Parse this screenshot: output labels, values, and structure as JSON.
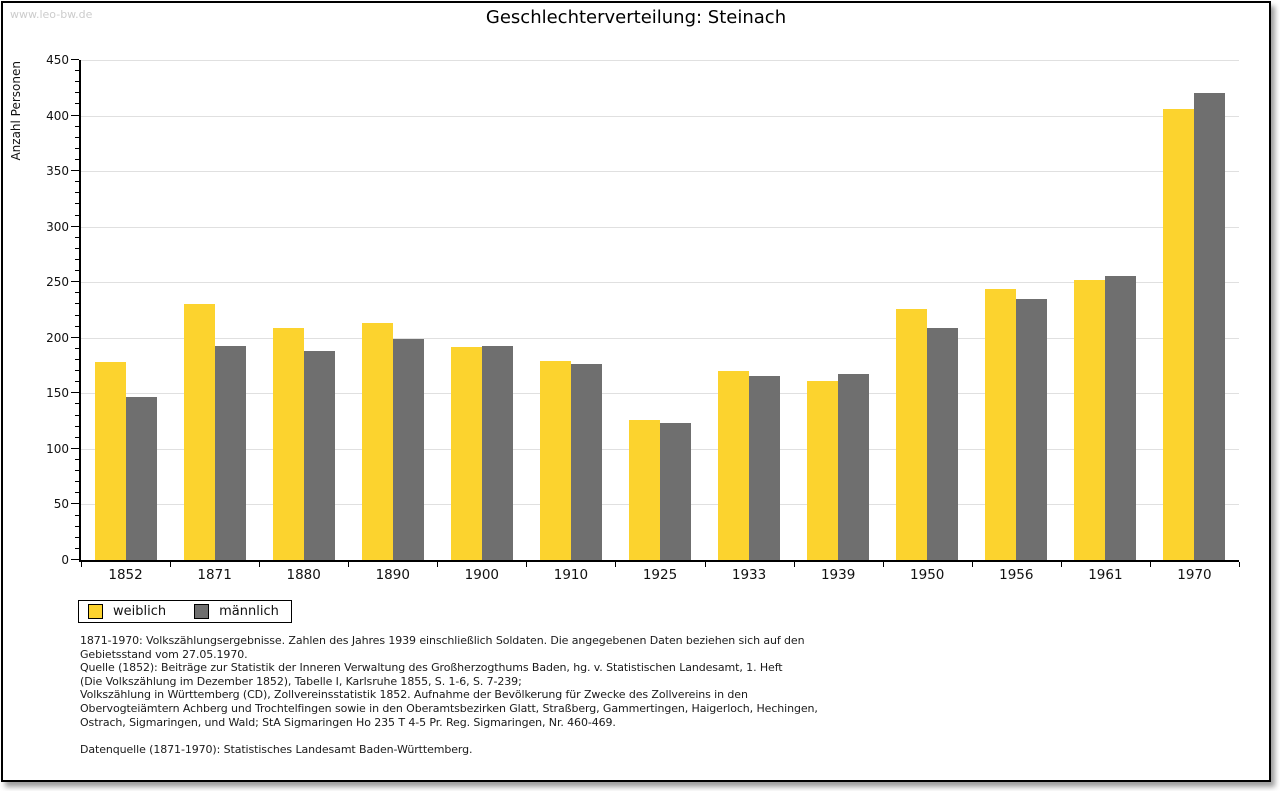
{
  "page": {
    "watermark": "www.leo-bw.de",
    "title": "Geschlechterverteilung: Steinach"
  },
  "chart_data": {
    "type": "bar",
    "title": "Geschlechterverteilung: Steinach",
    "xlabel": "",
    "ylabel": "Anzahl Personen",
    "ylim": [
      0,
      450
    ],
    "y_tick_step": 50,
    "y_minor_tick_step": 10,
    "grid": true,
    "legend_position": "bottom-left",
    "categories": [
      "1852",
      "1871",
      "1880",
      "1890",
      "1900",
      "1910",
      "1925",
      "1933",
      "1939",
      "1950",
      "1956",
      "1961",
      "1970"
    ],
    "series": [
      {
        "name": "weiblich",
        "color": "#FCD32E",
        "values": [
          178,
          230,
          209,
          213,
          192,
          179,
          126,
          170,
          161,
          226,
          244,
          252,
          406
        ]
      },
      {
        "name": "männlich",
        "color": "#6F6F6F",
        "values": [
          147,
          193,
          188,
          199,
          193,
          176,
          123,
          166,
          167,
          209,
          235,
          256,
          420
        ]
      }
    ]
  },
  "footer": {
    "notes": [
      "1871-1970: Volkszählungsergebnisse. Zahlen des Jahres 1939 einschließlich Soldaten. Die angegebenen Daten beziehen sich auf den",
      "Gebietsstand vom 27.05.1970.",
      "Quelle (1852): Beiträge zur Statistik der Inneren Verwaltung des Großherzogthums Baden, hg. v. Statistischen Landesamt, 1. Heft",
      "(Die Volkszählung im Dezember 1852), Tabelle I, Karlsruhe 1855, S. 1-6, S. 7-239;",
      "Volkszählung in Württemberg (CD), Zollvereinsstatistik 1852. Aufnahme der Bevölkerung für Zwecke des Zollvereins in den",
      "Obervogteiämtern Achberg und Trochtelfingen sowie in den Oberamtsbezirken Glatt, Straßberg, Gammertingen, Haigerloch, Hechingen,",
      "Ostrach, Sigmaringen, und Wald; StA Sigmaringen Ho 235 T 4-5 Pr. Reg. Sigmaringen, Nr. 460-469."
    ],
    "datasource": "Datenquelle (1871-1970): Statistisches Landesamt Baden-Württemberg."
  },
  "colors": {
    "weiblich": "#FCD32E",
    "maennlich": "#6F6F6F",
    "gridline": "#E0E0E0",
    "axis": "#000000",
    "watermark": "#CCCCCC"
  }
}
